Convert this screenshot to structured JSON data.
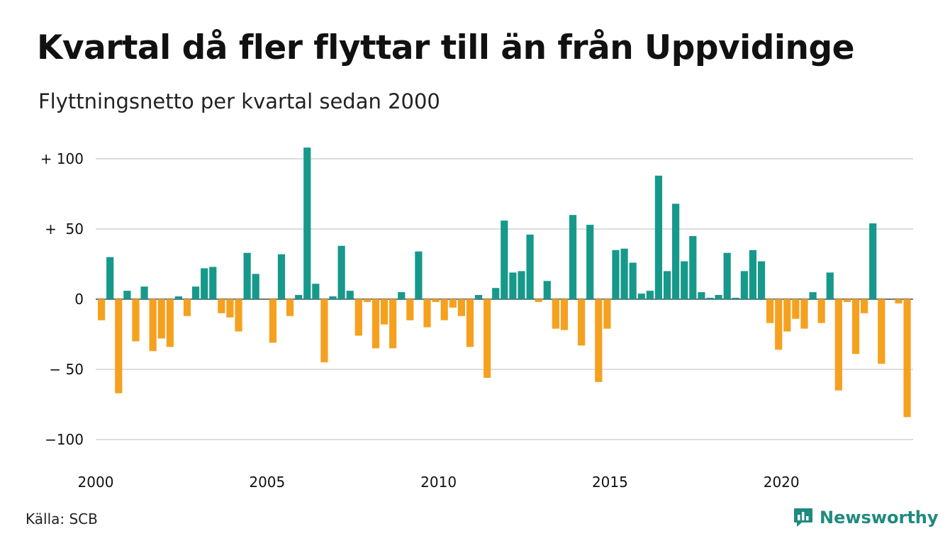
{
  "title": "Kvartal då fler flyttar till än från Uppvidinge",
  "subtitle": "Flyttningsnetto per kvartal sedan 2000",
  "source": "Källa: SCB",
  "brand": {
    "name": "Newsworthy",
    "icon": "bar-chart-speech-bubble-icon"
  },
  "colors": {
    "positive": "#16998a",
    "negative": "#f5a11f",
    "grid": "#dddddd",
    "text": "#111111",
    "brand": "#1f8a7e"
  },
  "chart_data": {
    "type": "bar",
    "x_start": "2000 Q1",
    "frequency": "quarterly",
    "values": [
      -15,
      30,
      -67,
      6,
      -30,
      9,
      -37,
      -28,
      -34,
      2,
      -12,
      9,
      22,
      23,
      -10,
      -13,
      -23,
      33,
      18,
      0,
      -31,
      32,
      -12,
      3,
      108,
      11,
      -45,
      2,
      38,
      6,
      -26,
      -2,
      -35,
      -18,
      -35,
      5,
      -15,
      34,
      -20,
      -2,
      -15,
      -6,
      -12,
      -34,
      3,
      -56,
      8,
      56,
      19,
      20,
      46,
      -2,
      13,
      -21,
      -22,
      60,
      -33,
      53,
      -59,
      -21,
      35,
      36,
      26,
      4,
      6,
      88,
      20,
      68,
      27,
      45,
      5,
      1,
      3,
      33,
      1,
      20,
      35,
      27,
      -17,
      -36,
      -23,
      -14,
      -21,
      5,
      -17,
      19,
      -65,
      -2,
      -39,
      -10,
      54,
      -46,
      0,
      -3,
      -84
    ],
    "yticks": [
      100,
      50,
      0,
      -50,
      -100
    ],
    "ytick_labels": [
      "+ 100",
      "+  50",
      "0",
      "− 50",
      "−100"
    ],
    "xticks": [
      "2000",
      "2005",
      "2010",
      "2015",
      "2020"
    ],
    "ylim": [
      -112,
      112
    ],
    "grid": true,
    "legend": "none"
  }
}
